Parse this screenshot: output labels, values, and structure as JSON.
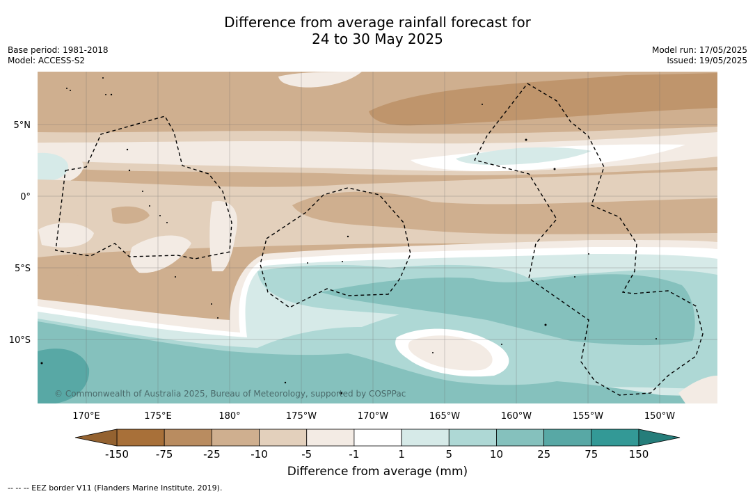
{
  "title_line1": "Difference from average rainfall forecast for",
  "title_line2": "24 to 30 May 2025",
  "meta_left": [
    "Base period: 1981-2018",
    "Model: ACCESS-S2"
  ],
  "meta_right": [
    "Model run: 17/05/2025",
    "Issued: 19/05/2025"
  ],
  "lat_labels": [
    "5°N",
    "0°",
    "5°S",
    "10°S"
  ],
  "lon_labels": [
    "170°E",
    "175°E",
    "180°",
    "175°W",
    "170°W",
    "165°W",
    "160°W",
    "155°W",
    "150°W"
  ],
  "copyright": "© Commonwealth of Australia 2025, Bureau of Meteorology, supported by COSPPac",
  "colorbar": {
    "ticks": [
      "-150",
      "-75",
      "-25",
      "-10",
      "-5",
      "-1",
      "1",
      "5",
      "10",
      "25",
      "75",
      "150"
    ],
    "colors": [
      "#a87039",
      "#b98c60",
      "#cfaf8f",
      "#e3d0bc",
      "#f3ebe4",
      "#ffffff",
      "#d6eae8",
      "#aed8d5",
      "#85c1bd",
      "#58a8a5",
      "#339996"
    ],
    "under_color": "#946230",
    "over_color": "#257d7a",
    "label": "Difference from average (mm)"
  },
  "footnote": "--  --  -- EEZ border V11 (Flanders Marine Institute, 2019)."
}
